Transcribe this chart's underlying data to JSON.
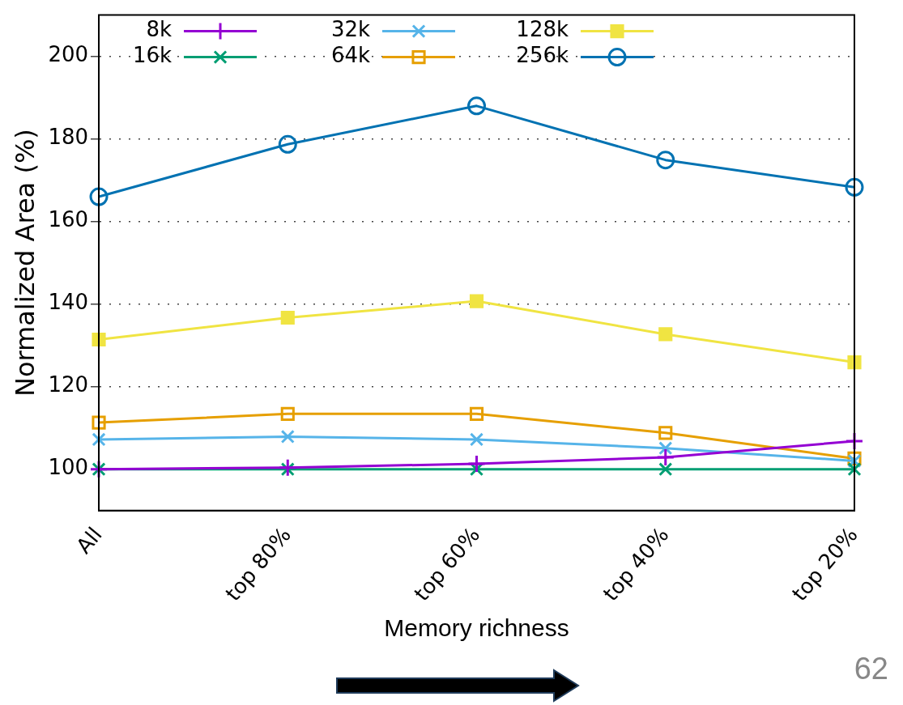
{
  "chart_data": {
    "type": "line",
    "xlabel": "Memory richness",
    "ylabel": "Normalized Area (%)",
    "categories": [
      "All",
      "top 80%",
      "top 60%",
      "top 40%",
      "top 20%"
    ],
    "series": [
      {
        "name": "8k",
        "color": "#9400d3",
        "marker": "plus",
        "values": [
          100,
          100.4,
          101.3,
          102.9,
          106.8
        ]
      },
      {
        "name": "16k",
        "color": "#009e73",
        "marker": "cross",
        "values": [
          100,
          100,
          100,
          100,
          100
        ]
      },
      {
        "name": "32k",
        "color": "#56b4e9",
        "marker": "cross",
        "values": [
          107.2,
          107.9,
          107.2,
          105.1,
          102
        ]
      },
      {
        "name": "64k",
        "color": "#e69f00",
        "marker": "square-open",
        "values": [
          111.3,
          113.4,
          113.4,
          108.8,
          102.6
        ]
      },
      {
        "name": "128k",
        "color": "#f0e442",
        "marker": "square",
        "values": [
          131.4,
          136.7,
          140.7,
          132.7,
          125.9
        ]
      },
      {
        "name": "256k",
        "color": "#0072b2",
        "marker": "circle-open",
        "values": [
          166,
          178.7,
          188,
          174.9,
          168.3
        ]
      }
    ],
    "ylim": [
      90,
      210
    ],
    "yticks": [
      100,
      120,
      140,
      160,
      180,
      200
    ],
    "grid": "y",
    "legend": "top left",
    "line_style": "solid",
    "annotations": [
      "62"
    ]
  }
}
